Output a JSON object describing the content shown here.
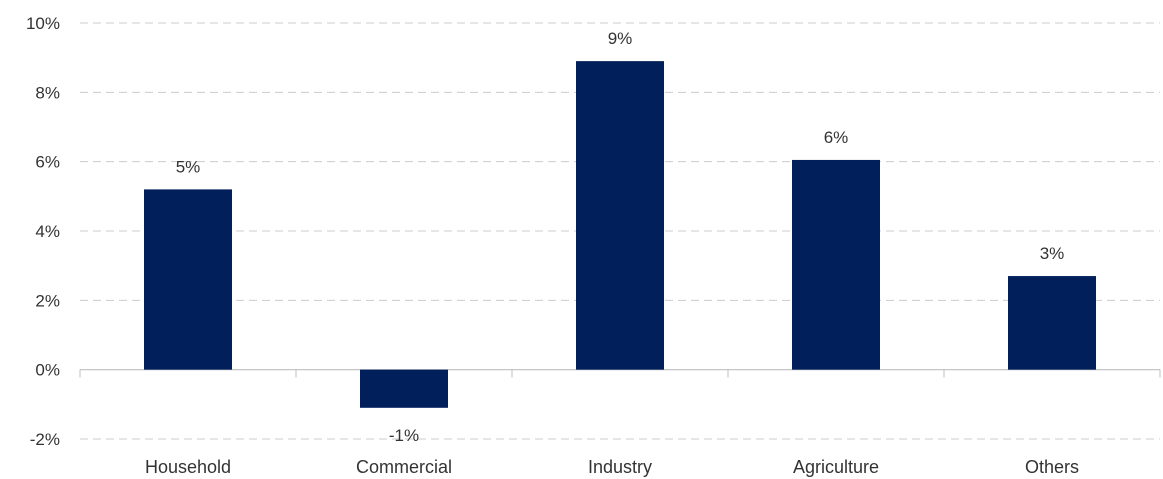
{
  "chart_data": {
    "type": "bar",
    "title": "",
    "xlabel": "",
    "ylabel": "",
    "categories": [
      "Household",
      "Commercial",
      "Industry",
      "Agriculture",
      "Others"
    ],
    "values": [
      5.2,
      -1.1,
      8.9,
      6.05,
      2.7
    ],
    "data_labels": [
      "5%",
      "-1%",
      "9%",
      "6%",
      "3%"
    ],
    "ylim": [
      -2,
      10
    ],
    "yticks": [
      -2,
      0,
      2,
      4,
      6,
      8,
      10
    ],
    "ytick_labels": [
      "-2%",
      "0%",
      "2%",
      "4%",
      "6%",
      "8%",
      "10%"
    ],
    "grid": true,
    "legend": "none",
    "colors": {
      "bar": "#001f5b",
      "grid": "#cccccc",
      "axis": "#bfbfbf",
      "text": "#333333"
    }
  }
}
